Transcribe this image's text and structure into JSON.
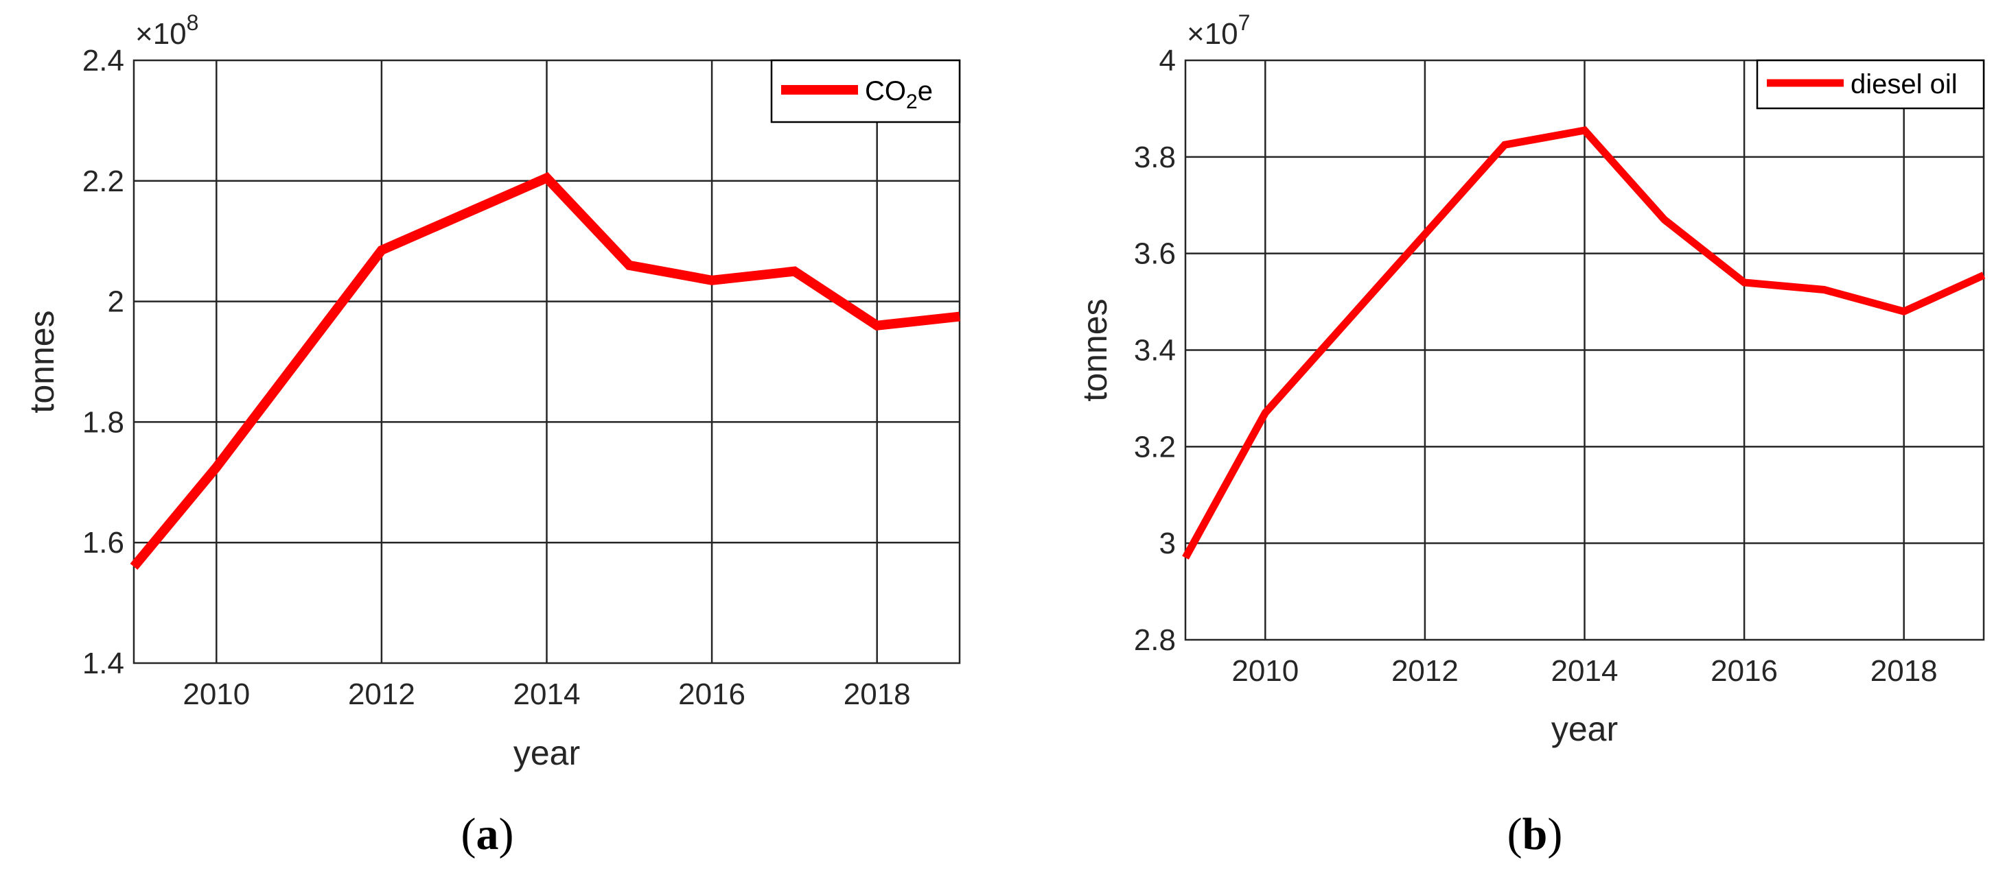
{
  "colors": {
    "series": "#ff0000",
    "axis": "#262626",
    "background": "#ffffff"
  },
  "chart_data": [
    {
      "id": "a",
      "type": "line",
      "panel_label": "a",
      "x": [
        2009,
        2010,
        2011,
        2012,
        2013,
        2014,
        2015,
        2016,
        2017,
        2018,
        2019
      ],
      "series": [
        {
          "name": "CO2e",
          "name_base": "CO",
          "name_sub": "2",
          "name_tail": "e",
          "values": [
            1.56,
            1.725,
            1.905,
            2.085,
            2.145,
            2.205,
            2.06,
            2.035,
            2.05,
            1.96,
            1.975
          ]
        }
      ],
      "exponent_prefix": "×10",
      "exponent": "8",
      "xlabel": "year",
      "ylabel": "tonnes",
      "xlim": [
        2009,
        2019
      ],
      "ylim": [
        1.4,
        2.4
      ],
      "xticks": [
        2010,
        2012,
        2014,
        2016,
        2018
      ],
      "xtick_labels": [
        "2010",
        "2012",
        "2014",
        "2016",
        "2018"
      ],
      "yticks": [
        1.4,
        1.6,
        1.8,
        2.0,
        2.2,
        2.4
      ],
      "ytick_labels": [
        "1.4",
        "1.6",
        "1.8",
        "2",
        "2.2",
        "2.4"
      ],
      "grid": true,
      "legend_position": "top-right"
    },
    {
      "id": "b",
      "type": "line",
      "panel_label": "b",
      "x": [
        2009,
        2010,
        2011,
        2012,
        2013,
        2014,
        2015,
        2016,
        2017,
        2018,
        2019
      ],
      "series": [
        {
          "name": "diesel oil",
          "values": [
            2.97,
            3.27,
            3.455,
            3.64,
            3.825,
            3.855,
            3.67,
            3.54,
            3.525,
            3.48,
            3.555
          ]
        }
      ],
      "exponent_prefix": "×10",
      "exponent": "7",
      "xlabel": "year",
      "ylabel": "tonnes",
      "xlim": [
        2009,
        2019
      ],
      "ylim": [
        2.8,
        4.0
      ],
      "xticks": [
        2010,
        2012,
        2014,
        2016,
        2018
      ],
      "xtick_labels": [
        "2010",
        "2012",
        "2014",
        "2016",
        "2018"
      ],
      "yticks": [
        2.8,
        3.0,
        3.2,
        3.4,
        3.6,
        3.8,
        4.0
      ],
      "ytick_labels": [
        "2.8",
        "3",
        "3.2",
        "3.4",
        "3.6",
        "3.8",
        "4"
      ],
      "grid": true,
      "legend_position": "top-right"
    }
  ]
}
